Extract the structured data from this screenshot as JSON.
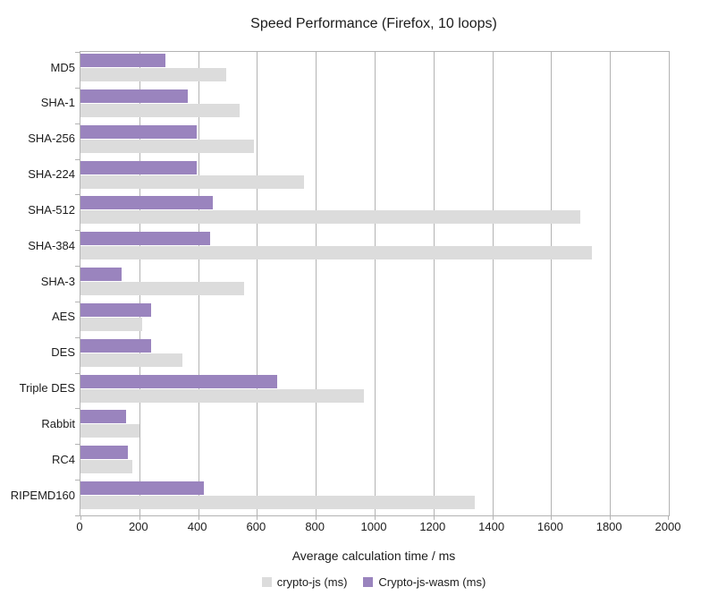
{
  "title": "Speed Performance (Firefox, 10 loops)",
  "colors": {
    "series_crypto_js": "#dcdcdc",
    "series_wasm": "#9a84be",
    "grid": "#b3b3b3",
    "text": "#1c1c1c"
  },
  "chart_data": {
    "type": "bar",
    "orientation": "horizontal",
    "title": "Speed Performance (Firefox, 10 loops)",
    "xlabel": "Average calculation time / ms",
    "ylabel": "",
    "xlim": [
      0,
      2000
    ],
    "xticks": [
      0,
      200,
      400,
      600,
      800,
      1000,
      1200,
      1400,
      1600,
      1800,
      2000
    ],
    "grid": true,
    "legend_position": "bottom",
    "categories": [
      "MD5",
      "SHA-1",
      "SHA-256",
      "SHA-224",
      "SHA-512",
      "SHA-384",
      "SHA-3",
      "AES",
      "DES",
      "Triple DES",
      "Rabbit",
      "RC4",
      "RIPEMD160"
    ],
    "series": [
      {
        "name": "crypto-js (ms)",
        "color": "#dcdcdc",
        "values": [
          495,
          540,
          590,
          760,
          1700,
          1740,
          555,
          210,
          345,
          965,
          200,
          175,
          1340
        ]
      },
      {
        "name": "Crypto-js-wasm (ms)",
        "color": "#9a84be",
        "values": [
          290,
          365,
          395,
          395,
          450,
          440,
          140,
          240,
          240,
          670,
          155,
          160,
          420
        ]
      }
    ]
  }
}
